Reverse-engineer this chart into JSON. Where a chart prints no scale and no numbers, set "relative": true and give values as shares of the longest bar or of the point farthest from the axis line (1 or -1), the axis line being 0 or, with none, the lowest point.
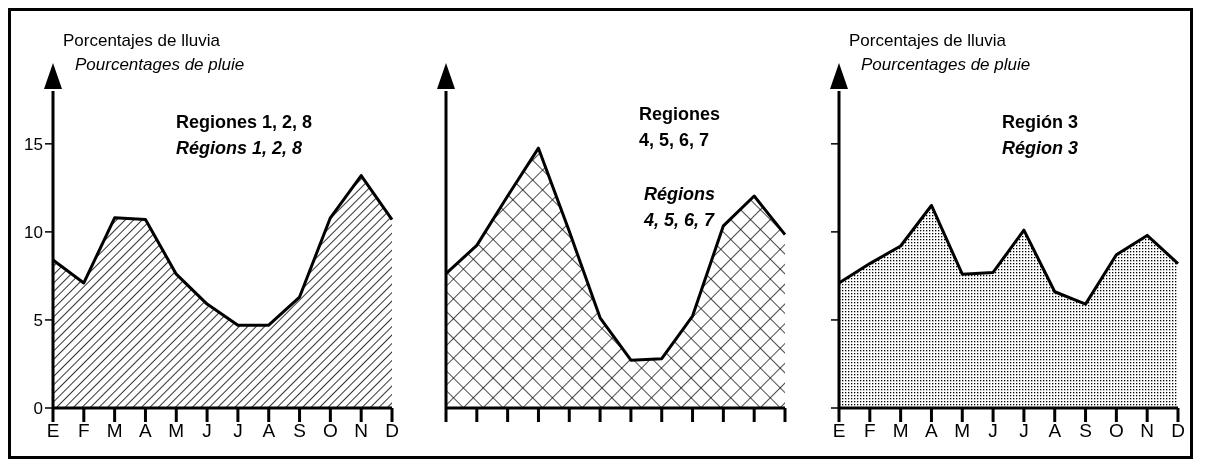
{
  "chart_data": [
    {
      "type": "area",
      "ylabel": "Porcentajes de lluvia\nPourcentages de pluie",
      "annotations": [
        "Regiones 1, 2, 8",
        "Régions 1, 2, 8"
      ],
      "categories": [
        "E",
        "F",
        "M",
        "A",
        "M",
        "J",
        "J",
        "A",
        "S",
        "O",
        "N",
        "D"
      ],
      "color": "#000000",
      "values": [
        8.4,
        7.1,
        10.8,
        10.7,
        7.6,
        5.9,
        4.7,
        4.7,
        6.3,
        10.8,
        13.2,
        10.7
      ],
      "ylim": [
        0,
        18
      ],
      "yticks": [
        0,
        5,
        10,
        15
      ],
      "grid": false
    },
    {
      "type": "area",
      "annotations": [
        "Regiones\n4, 5, 6, 7",
        "Régions\n4, 5, 6, 7"
      ],
      "categories": [
        null,
        null,
        null,
        null,
        null,
        null,
        null,
        null,
        null,
        null,
        null,
        null
      ],
      "color": "#000000",
      "values": [
        0.517,
        0.626,
        0.816,
        1,
        0.68,
        0.347,
        0.184,
        0.19,
        0.354,
        0.701,
        0.816,
        0.667
      ],
      "relative": true,
      "grid": false,
      "tick_labels": false
    },
    {
      "type": "area",
      "ylabel": "Porcentajes de lluvia\nPourcentages de pluie",
      "annotations": [
        "Región 3",
        "Région 3"
      ],
      "categories": [
        "E",
        "F",
        "M",
        "A",
        "M",
        "J",
        "J",
        "A",
        "S",
        "O",
        "N",
        "D"
      ],
      "color": "#000000",
      "values": [
        7.1,
        8.2,
        9.2,
        11.5,
        7.6,
        7.7,
        10.1,
        6.6,
        5.9,
        8.7,
        9.8,
        8.2
      ],
      "ylim": [
        0,
        18
      ],
      "yticks": [
        0,
        5,
        10,
        15
      ],
      "grid": false,
      "tick_labels": "x"
    }
  ]
}
